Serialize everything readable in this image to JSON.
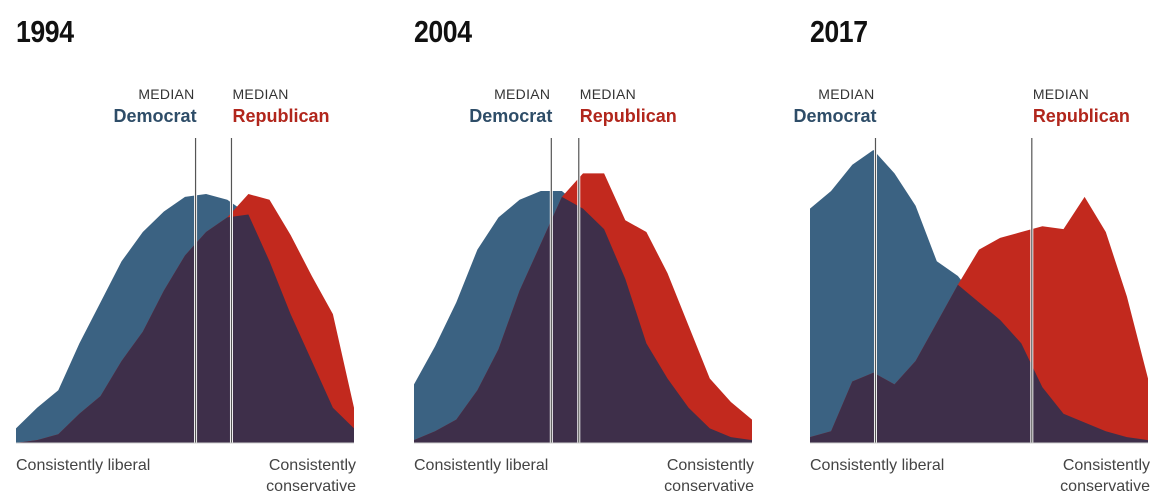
{
  "chart_data": [
    {
      "type": "area",
      "title": "1994",
      "x_start_label": "Consistently liberal",
      "x_end_label": "Consistently conservative",
      "median_label_prefix": "MEDIAN",
      "series": [
        {
          "name": "Democrat",
          "color": "#3b6282",
          "median": 8.5,
          "values": [
            0.05,
            0.12,
            0.18,
            0.34,
            0.48,
            0.62,
            0.72,
            0.79,
            0.84,
            0.85,
            0.83,
            0.78,
            0.62,
            0.44,
            0.28,
            0.12,
            0.05
          ]
        },
        {
          "name": "Republican",
          "color": "#c2291e",
          "median": 10.2,
          "values": [
            0.0,
            0.01,
            0.03,
            0.1,
            0.16,
            0.28,
            0.38,
            0.52,
            0.64,
            0.72,
            0.77,
            0.85,
            0.83,
            0.71,
            0.57,
            0.44,
            0.12
          ]
        }
      ],
      "overlap_color": "#3e2f4a",
      "x_range": [
        0,
        16
      ],
      "y_range": [
        0,
        1
      ]
    },
    {
      "type": "area",
      "title": "2004",
      "x_start_label": "Consistently liberal",
      "x_end_label": "Consistently conservative",
      "median_label_prefix": "MEDIAN",
      "series": [
        {
          "name": "Democrat",
          "color": "#3b6282",
          "median": 6.5,
          "values": [
            0.2,
            0.33,
            0.48,
            0.66,
            0.77,
            0.83,
            0.86,
            0.86,
            0.8,
            0.73,
            0.56,
            0.34,
            0.22,
            0.12,
            0.05,
            0.02,
            0.01
          ]
        },
        {
          "name": "Republican",
          "color": "#c2291e",
          "median": 7.8,
          "values": [
            0.01,
            0.04,
            0.08,
            0.18,
            0.32,
            0.52,
            0.68,
            0.84,
            0.92,
            0.92,
            0.76,
            0.72,
            0.58,
            0.4,
            0.22,
            0.14,
            0.08
          ]
        }
      ],
      "overlap_color": "#3e2f4a",
      "x_range": [
        0,
        16
      ],
      "y_range": [
        0,
        1
      ]
    },
    {
      "type": "area",
      "title": "2017",
      "x_start_label": "Consistently liberal",
      "x_end_label": "Consistently conservative",
      "median_label_prefix": "MEDIAN",
      "series": [
        {
          "name": "Democrat",
          "color": "#3b6282",
          "median": 3.1,
          "values": [
            0.8,
            0.86,
            0.95,
            1.0,
            0.92,
            0.81,
            0.62,
            0.57,
            0.48,
            0.42,
            0.34,
            0.19,
            0.1,
            0.07,
            0.04,
            0.02,
            0.01
          ]
        },
        {
          "name": "Republican",
          "color": "#c2291e",
          "median": 10.5,
          "values": [
            0.02,
            0.04,
            0.21,
            0.24,
            0.2,
            0.28,
            0.41,
            0.54,
            0.66,
            0.7,
            0.72,
            0.74,
            0.73,
            0.84,
            0.72,
            0.5,
            0.22
          ]
        }
      ],
      "overlap_color": "#3e2f4a",
      "x_range": [
        0,
        16
      ],
      "y_range": [
        0,
        1
      ]
    }
  ]
}
